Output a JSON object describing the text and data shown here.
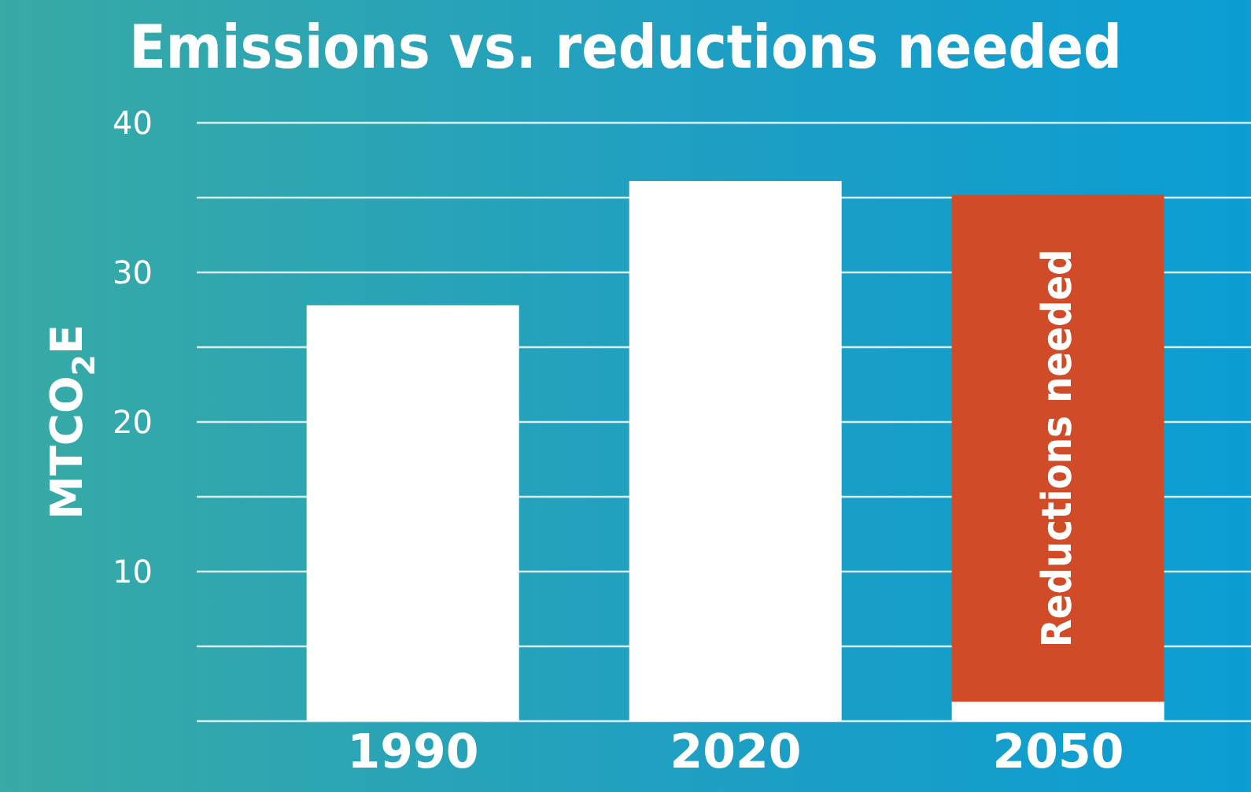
{
  "chart_data": {
    "type": "bar",
    "title": "Emissions vs. reductions needed",
    "ylabel": "MTCO$_{2}$E",
    "categories": [
      "1990",
      "2020",
      "2050"
    ],
    "stacked": true,
    "series": [
      {
        "color": "#ffffff",
        "values": [
          27.8,
          36.1,
          1.3
        ]
      },
      {
        "name": "Reductions needed",
        "color": "#d04b27",
        "values": [
          null,
          null,
          33.9
        ]
      }
    ],
    "ylim": [
      0,
      40
    ],
    "yticks": [
      {
        "value": 0,
        "label": null
      },
      {
        "value": 5,
        "label": null
      },
      10,
      {
        "value": 15,
        "label": null
      },
      20,
      {
        "value": 25,
        "label": null
      },
      30,
      {
        "value": 35,
        "label": null
      },
      40
    ],
    "grid": "y",
    "legend": false
  }
}
